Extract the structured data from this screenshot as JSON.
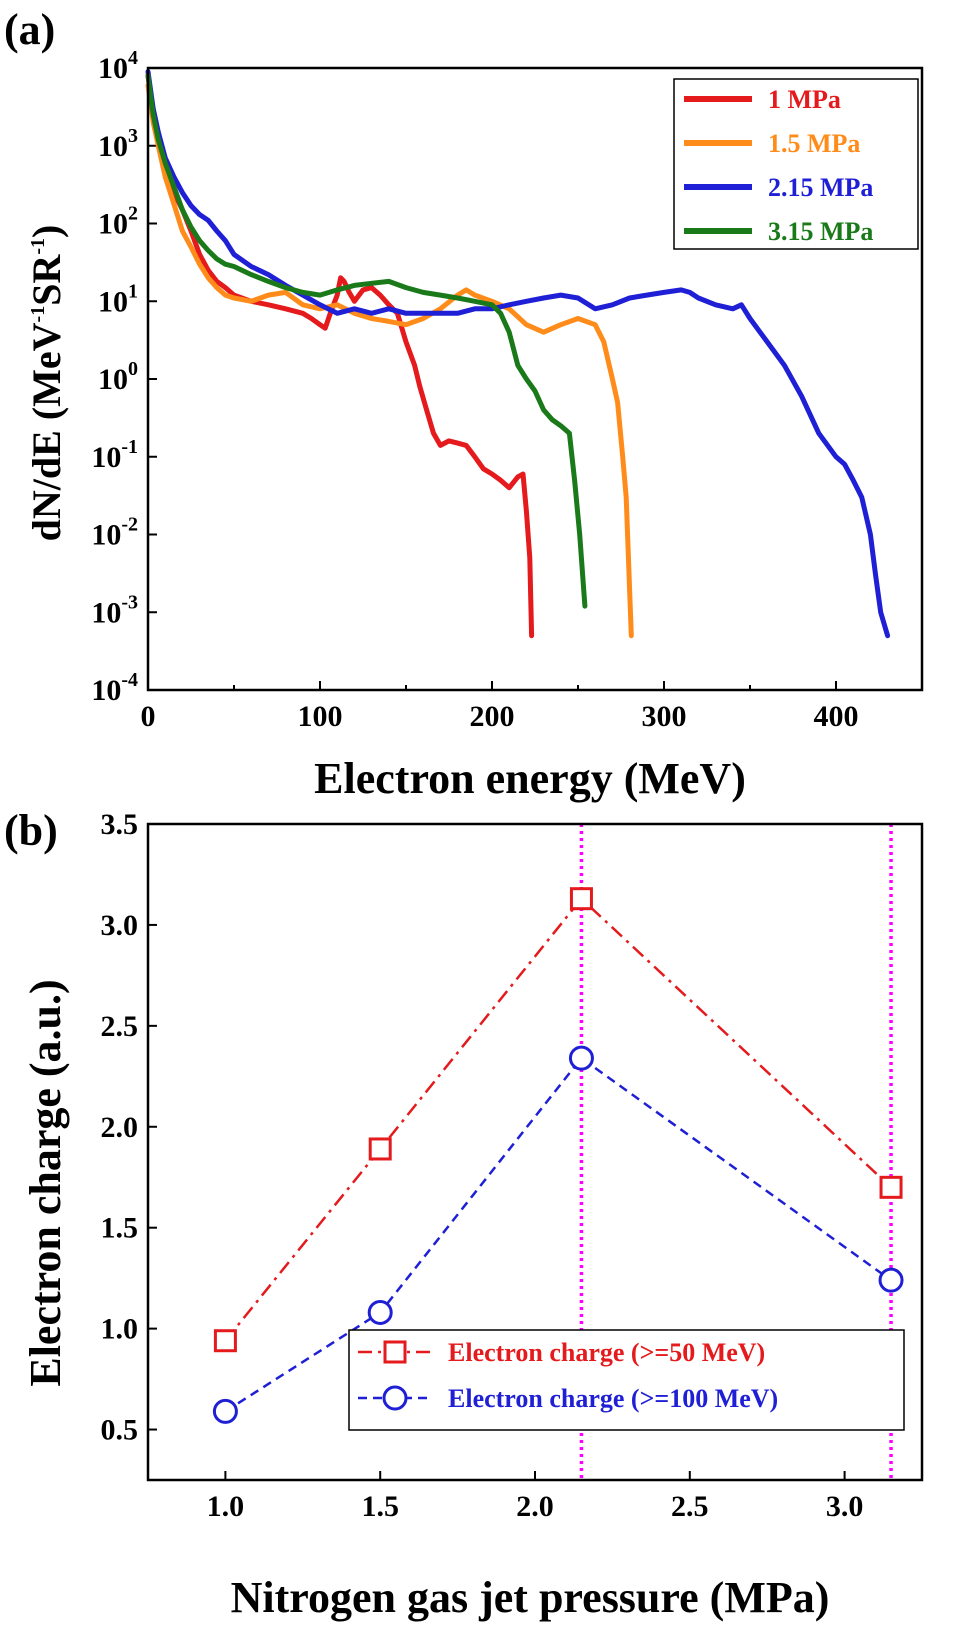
{
  "figure": {
    "panel_a_label": "(a)",
    "panel_b_label": "(b)"
  },
  "chart_data": [
    {
      "panel": "(a)",
      "type": "line",
      "xlabel": "Electron energy (MeV)",
      "ylabel": {
        "base": "dN/dE (MeV",
        "exp1": "-1",
        "mid": "SR",
        "exp2": "-1",
        "end": ")"
      },
      "yscale": "log",
      "xlim": [
        0,
        450
      ],
      "ylim": [
        0.0001,
        10000
      ],
      "xticks": [
        0,
        100,
        200,
        300,
        400
      ],
      "xtick_labels": [
        "0",
        "100",
        "200",
        "300",
        "400"
      ],
      "yticks": [
        {
          "value": 10000,
          "base": "10",
          "exp": "4"
        },
        {
          "value": 1000,
          "base": "10",
          "exp": "3"
        },
        {
          "value": 100,
          "base": "10",
          "exp": "2"
        },
        {
          "value": 10,
          "base": "10",
          "exp": "1"
        },
        {
          "value": 1,
          "base": "10",
          "exp": "0"
        },
        {
          "value": 0.1,
          "base": "10",
          "exp": "-1"
        },
        {
          "value": 0.01,
          "base": "10",
          "exp": "-2"
        },
        {
          "value": 0.001,
          "base": "10",
          "exp": "-3"
        },
        {
          "value": 0.0001,
          "base": "10",
          "exp": "-4"
        }
      ],
      "legend_position": "top-right",
      "series": [
        {
          "name": "1 MPa",
          "color": "#e41a1c",
          "points": [
            [
              0,
              8000
            ],
            [
              3,
              2500
            ],
            [
              6,
              1200
            ],
            [
              10,
              500
            ],
            [
              15,
              250
            ],
            [
              20,
              150
            ],
            [
              25,
              80
            ],
            [
              30,
              40
            ],
            [
              35,
              25
            ],
            [
              40,
              18
            ],
            [
              45,
              15
            ],
            [
              50,
              12
            ],
            [
              60,
              10
            ],
            [
              70,
              9
            ],
            [
              80,
              8
            ],
            [
              90,
              7
            ],
            [
              95,
              6
            ],
            [
              100,
              5
            ],
            [
              103,
              4.5
            ],
            [
              106,
              7
            ],
            [
              110,
              12
            ],
            [
              112,
              20
            ],
            [
              114,
              18
            ],
            [
              117,
              13
            ],
            [
              120,
              10
            ],
            [
              125,
              14
            ],
            [
              130,
              15
            ],
            [
              135,
              12
            ],
            [
              140,
              9
            ],
            [
              145,
              7
            ],
            [
              150,
              3
            ],
            [
              155,
              1.5
            ],
            [
              158,
              0.8
            ],
            [
              162,
              0.4
            ],
            [
              166,
              0.2
            ],
            [
              170,
              0.14
            ],
            [
              175,
              0.16
            ],
            [
              180,
              0.15
            ],
            [
              185,
              0.14
            ],
            [
              190,
              0.1
            ],
            [
              195,
              0.07
            ],
            [
              200,
              0.06
            ],
            [
              205,
              0.05
            ],
            [
              210,
              0.04
            ],
            [
              215,
              0.055
            ],
            [
              218,
              0.06
            ],
            [
              220,
              0.02
            ],
            [
              222,
              0.005
            ],
            [
              223,
              0.0005
            ]
          ]
        },
        {
          "name": "1.5 MPa",
          "color": "#ff8c1a",
          "points": [
            [
              0,
              6000
            ],
            [
              3,
              2000
            ],
            [
              6,
              1000
            ],
            [
              10,
              400
            ],
            [
              15,
              180
            ],
            [
              20,
              80
            ],
            [
              25,
              50
            ],
            [
              30,
              30
            ],
            [
              35,
              20
            ],
            [
              40,
              15
            ],
            [
              45,
              12
            ],
            [
              50,
              11
            ],
            [
              60,
              10
            ],
            [
              70,
              12
            ],
            [
              80,
              13
            ],
            [
              90,
              9
            ],
            [
              100,
              8
            ],
            [
              110,
              9
            ],
            [
              120,
              7
            ],
            [
              130,
              6
            ],
            [
              140,
              5.5
            ],
            [
              150,
              5
            ],
            [
              160,
              6
            ],
            [
              170,
              8
            ],
            [
              180,
              12
            ],
            [
              185,
              14
            ],
            [
              190,
              12
            ],
            [
              200,
              10
            ],
            [
              210,
              8
            ],
            [
              220,
              5
            ],
            [
              230,
              4
            ],
            [
              240,
              5
            ],
            [
              250,
              6
            ],
            [
              260,
              5
            ],
            [
              265,
              3
            ],
            [
              270,
              1
            ],
            [
              273,
              0.5
            ],
            [
              276,
              0.1
            ],
            [
              278,
              0.03
            ],
            [
              281,
              0.0005
            ]
          ]
        },
        {
          "name": "2.15 MPa",
          "color": "#1f1fd6",
          "points": [
            [
              0,
              9000
            ],
            [
              3,
              3000
            ],
            [
              6,
              1500
            ],
            [
              10,
              700
            ],
            [
              15,
              400
            ],
            [
              20,
              250
            ],
            [
              25,
              170
            ],
            [
              30,
              130
            ],
            [
              35,
              110
            ],
            [
              40,
              80
            ],
            [
              45,
              60
            ],
            [
              50,
              40
            ],
            [
              60,
              28
            ],
            [
              70,
              22
            ],
            [
              80,
              16
            ],
            [
              90,
              12
            ],
            [
              100,
              9
            ],
            [
              110,
              7
            ],
            [
              120,
              8
            ],
            [
              130,
              7
            ],
            [
              140,
              8
            ],
            [
              150,
              7
            ],
            [
              160,
              7
            ],
            [
              170,
              7
            ],
            [
              180,
              7
            ],
            [
              190,
              8
            ],
            [
              200,
              8
            ],
            [
              210,
              9
            ],
            [
              220,
              10
            ],
            [
              230,
              11
            ],
            [
              240,
              12
            ],
            [
              250,
              11
            ],
            [
              260,
              8
            ],
            [
              270,
              9
            ],
            [
              280,
              11
            ],
            [
              290,
              12
            ],
            [
              300,
              13
            ],
            [
              310,
              14
            ],
            [
              315,
              13
            ],
            [
              320,
              11
            ],
            [
              330,
              9
            ],
            [
              340,
              8
            ],
            [
              345,
              9
            ],
            [
              350,
              6
            ],
            [
              360,
              3
            ],
            [
              370,
              1.5
            ],
            [
              380,
              0.6
            ],
            [
              390,
              0.2
            ],
            [
              400,
              0.1
            ],
            [
              405,
              0.08
            ],
            [
              410,
              0.05
            ],
            [
              415,
              0.03
            ],
            [
              420,
              0.01
            ],
            [
              423,
              0.003
            ],
            [
              426,
              0.001
            ],
            [
              430,
              0.0005
            ]
          ]
        },
        {
          "name": "3.15 MPa",
          "color": "#1a7a1a",
          "points": [
            [
              0,
              8000
            ],
            [
              3,
              2500
            ],
            [
              6,
              1200
            ],
            [
              10,
              600
            ],
            [
              15,
              300
            ],
            [
              20,
              150
            ],
            [
              25,
              90
            ],
            [
              30,
              60
            ],
            [
              35,
              45
            ],
            [
              40,
              35
            ],
            [
              45,
              30
            ],
            [
              50,
              28
            ],
            [
              60,
              22
            ],
            [
              70,
              18
            ],
            [
              80,
              15
            ],
            [
              90,
              13
            ],
            [
              100,
              12
            ],
            [
              110,
              14
            ],
            [
              120,
              16
            ],
            [
              130,
              17
            ],
            [
              140,
              18
            ],
            [
              150,
              15
            ],
            [
              160,
              13
            ],
            [
              170,
              12
            ],
            [
              180,
              11
            ],
            [
              190,
              10
            ],
            [
              200,
              9
            ],
            [
              205,
              7
            ],
            [
              210,
              4
            ],
            [
              215,
              1.5
            ],
            [
              220,
              1
            ],
            [
              225,
              0.7
            ],
            [
              230,
              0.4
            ],
            [
              235,
              0.3
            ],
            [
              240,
              0.25
            ],
            [
              245,
              0.2
            ],
            [
              248,
              0.05
            ],
            [
              251,
              0.01
            ],
            [
              254,
              0.0012
            ]
          ]
        }
      ]
    },
    {
      "panel": "(b)",
      "type": "line",
      "xlabel": "Nitrogen gas jet pressure (MPa)",
      "ylabel": "Electron charge (a.u.)",
      "xlim": [
        0.75,
        3.25
      ],
      "ylim": [
        0.25,
        3.5
      ],
      "xticks": [
        1.0,
        1.5,
        2.0,
        2.5,
        3.0
      ],
      "xtick_labels": [
        "1.0",
        "1.5",
        "2.0",
        "2.5",
        "3.0"
      ],
      "yticks": [
        0.5,
        1.0,
        1.5,
        2.0,
        2.5,
        3.0,
        3.5
      ],
      "ytick_labels": [
        "0.5",
        "1.0",
        "1.5",
        "2.0",
        "2.5",
        "3.0",
        "3.5"
      ],
      "vlines": [
        2.15,
        3.15
      ],
      "vline_color": "#ff00ff",
      "legend_position": "bottom-right",
      "x": [
        1.0,
        1.5,
        2.15,
        3.15
      ],
      "series": [
        {
          "name": "Electron charge (>=50 MeV)",
          "color": "#e41a1c",
          "marker": "square",
          "linestyle": "dashdot",
          "values": [
            0.94,
            1.89,
            3.13,
            1.7
          ]
        },
        {
          "name": "Electron charge (>=100 MeV)",
          "color": "#1f1fd6",
          "marker": "circle",
          "linestyle": "dashed",
          "values": [
            0.59,
            1.08,
            2.34,
            1.24
          ]
        }
      ]
    }
  ]
}
